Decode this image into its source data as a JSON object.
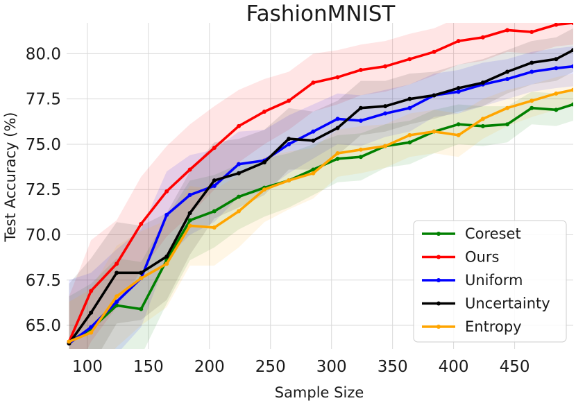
{
  "chart_data": {
    "type": "line",
    "title": "FashionMNIST",
    "xlabel": "Sample Size",
    "ylabel": "Test Accuracy (%)",
    "xlim": [
      83,
      498
    ],
    "ylim": [
      63.7,
      81.7
    ],
    "xticks": [
      100,
      150,
      200,
      250,
      300,
      350,
      400,
      450
    ],
    "yticks": [
      65.0,
      67.5,
      70.0,
      72.5,
      75.0,
      77.5,
      80.0
    ],
    "xtick_labels": [
      "100",
      "150",
      "200",
      "250",
      "300",
      "350",
      "400",
      "450"
    ],
    "ytick_labels": [
      "65.0",
      "67.5",
      "70.0",
      "72.5",
      "75.0",
      "77.5",
      "80.0"
    ],
    "grid": true,
    "legend_position": "lower-right",
    "series": [
      {
        "name": "Coreset",
        "color": "#008000",
        "x": [
          85,
          103,
          124,
          144,
          165,
          184,
          204,
          224,
          245,
          265,
          285,
          305,
          324,
          344,
          364,
          384,
          404,
          424,
          444,
          464,
          484,
          498
        ],
        "y": [
          64.1,
          64.8,
          66.1,
          65.9,
          68.6,
          70.8,
          71.3,
          72.1,
          72.6,
          73.0,
          73.6,
          74.2,
          74.3,
          74.9,
          75.1,
          75.7,
          76.1,
          76.0,
          76.1,
          77.0,
          76.9,
          77.2
        ],
        "band": [
          2.5,
          2.5,
          2.6,
          2.6,
          2.4,
          2.2,
          2.0,
          1.8,
          1.6,
          1.5,
          1.4,
          1.3,
          1.3,
          1.2,
          1.2,
          1.2,
          1.1,
          1.1,
          1.0,
          0.9,
          0.9,
          0.9
        ]
      },
      {
        "name": "Ours",
        "color": "#ff0000",
        "x": [
          85,
          103,
          124,
          144,
          165,
          184,
          204,
          224,
          245,
          265,
          285,
          305,
          324,
          344,
          364,
          384,
          404,
          424,
          444,
          464,
          484,
          498
        ],
        "y": [
          64.1,
          66.9,
          68.4,
          70.6,
          72.4,
          73.6,
          74.8,
          76.0,
          76.8,
          77.4,
          78.4,
          78.7,
          79.1,
          79.3,
          79.7,
          80.1,
          80.7,
          80.9,
          81.3,
          81.2,
          81.6,
          81.7
        ],
        "band": [
          2.5,
          2.8,
          2.4,
          2.6,
          2.5,
          2.5,
          2.3,
          2.0,
          1.8,
          1.6,
          1.6,
          1.5,
          1.4,
          1.4,
          1.4,
          1.3,
          1.3,
          1.3,
          1.2,
          1.2,
          1.2,
          1.2
        ]
      },
      {
        "name": "Uniform",
        "color": "#0000ff",
        "x": [
          85,
          103,
          124,
          144,
          165,
          184,
          204,
          224,
          245,
          265,
          285,
          305,
          324,
          344,
          364,
          384,
          404,
          424,
          444,
          464,
          484,
          498
        ],
        "y": [
          64.0,
          64.9,
          66.3,
          67.6,
          71.1,
          72.2,
          72.7,
          73.9,
          74.1,
          75.0,
          75.7,
          76.4,
          76.3,
          76.7,
          77.0,
          77.7,
          77.9,
          78.3,
          78.6,
          79.0,
          79.2,
          79.3
        ],
        "band": [
          3.5,
          3.0,
          2.9,
          2.7,
          2.4,
          2.2,
          2.0,
          1.8,
          1.7,
          1.6,
          1.5,
          1.4,
          1.4,
          1.3,
          1.3,
          1.2,
          1.2,
          1.2,
          1.1,
          1.1,
          1.1,
          1.1
        ]
      },
      {
        "name": "Uncertainty",
        "color": "#000000",
        "x": [
          85,
          103,
          124,
          144,
          165,
          184,
          204,
          224,
          245,
          265,
          285,
          305,
          324,
          344,
          364,
          384,
          404,
          424,
          444,
          464,
          484,
          498
        ],
        "y": [
          64.0,
          65.7,
          67.9,
          67.9,
          68.8,
          71.2,
          73.0,
          73.4,
          74.0,
          75.3,
          75.2,
          75.9,
          77.0,
          77.1,
          77.5,
          77.7,
          78.1,
          78.4,
          79.0,
          79.5,
          79.7,
          80.2
        ],
        "band": [
          3.3,
          3.0,
          2.8,
          2.6,
          2.4,
          2.3,
          2.1,
          1.9,
          1.8,
          1.7,
          1.6,
          1.5,
          1.5,
          1.4,
          1.4,
          1.3,
          1.3,
          1.3,
          1.2,
          1.2,
          1.2,
          1.2
        ]
      },
      {
        "name": "Entropy",
        "color": "#ffa500",
        "x": [
          85,
          103,
          124,
          144,
          165,
          184,
          204,
          224,
          245,
          265,
          285,
          305,
          324,
          344,
          364,
          384,
          404,
          424,
          444,
          464,
          484,
          498
        ],
        "y": [
          64.1,
          64.6,
          66.6,
          67.6,
          68.4,
          70.5,
          70.4,
          71.3,
          72.5,
          73.0,
          73.4,
          74.5,
          74.7,
          74.9,
          75.5,
          75.7,
          75.5,
          76.4,
          77.0,
          77.4,
          77.8,
          78.0
        ],
        "band": [
          2.2,
          2.4,
          2.8,
          2.6,
          2.4,
          2.2,
          2.1,
          2.0,
          1.8,
          1.6,
          1.4,
          1.3,
          1.3,
          1.2,
          1.2,
          1.2,
          1.2,
          1.1,
          1.0,
          0.9,
          0.9,
          0.9
        ]
      }
    ]
  }
}
